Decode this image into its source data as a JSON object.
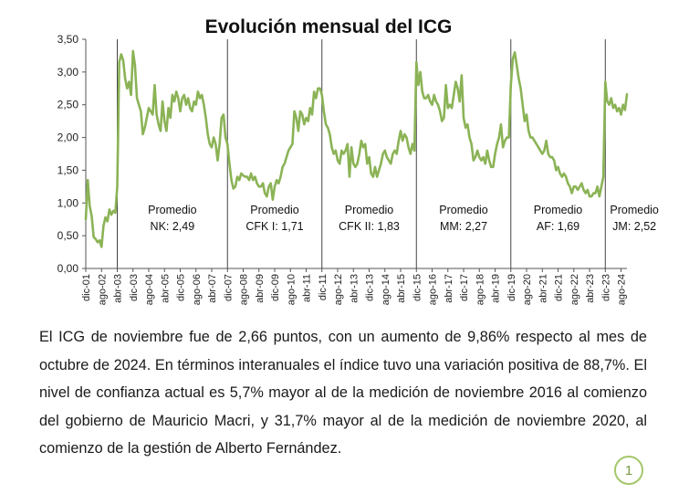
{
  "chart_data": {
    "type": "line",
    "title": "Evolución mensual del ICG",
    "xlabel": "",
    "ylabel": "",
    "ylim": [
      0,
      3.5
    ],
    "yticks": [
      "0,00",
      "0,50",
      "1,00",
      "1,50",
      "2,00",
      "2,50",
      "3,00",
      "3,50"
    ],
    "xticks": [
      "dic-01",
      "ago-02",
      "abr-03",
      "dic-03",
      "ago-04",
      "abr-05",
      "dic-05",
      "ago-06",
      "abr-07",
      "dic-07",
      "ago-08",
      "abr-09",
      "dic-09",
      "ago-10",
      "abr-11",
      "dic-11",
      "ago-12",
      "abr-13",
      "dic-13",
      "ago-14",
      "abr-15",
      "dic-15",
      "ago-16",
      "abr-17",
      "dic-17",
      "ago-18",
      "abr-19",
      "dic-19",
      "ago-20",
      "abr-21",
      "dic-21",
      "ago-22",
      "abr-23",
      "dic-23",
      "ago-24"
    ],
    "grid": false,
    "line_color": "#8bb356",
    "periods": [
      {
        "label": "Promedio",
        "value_label": "NK: 2,49"
      },
      {
        "label": "Promedio",
        "value_label": "CFK I: 1,71"
      },
      {
        "label": "Promedio",
        "value_label": "CFK II: 1,83"
      },
      {
        "label": "Promedio",
        "value_label": "MM: 2,27"
      },
      {
        "label": "Promedio",
        "value_label": "AF: 1,69"
      },
      {
        "label": "Promedio",
        "value_label": "JM: 2,52"
      }
    ],
    "series": [
      {
        "points": [
          [
            "dic-01",
            0.75
          ],
          [
            "ene-02",
            1.35
          ],
          [
            "feb-02",
            0.95
          ],
          [
            "mar-02",
            0.8
          ],
          [
            "abr-02",
            0.48
          ],
          [
            "may-02",
            0.45
          ],
          [
            "jun-02",
            0.4
          ],
          [
            "jul-02",
            0.43
          ],
          [
            "ago-02",
            0.33
          ],
          [
            "sep-02",
            0.65
          ],
          [
            "oct-02",
            0.78
          ],
          [
            "nov-02",
            0.72
          ],
          [
            "dic-02",
            0.9
          ],
          [
            "ene-03",
            0.82
          ],
          [
            "feb-03",
            0.88
          ],
          [
            "mar-03",
            0.85
          ],
          [
            "abr-03",
            1.25
          ],
          [
            "may-03",
            3.15
          ],
          [
            "jun-03",
            3.27
          ],
          [
            "jul-03",
            3.18
          ],
          [
            "ago-03",
            2.9
          ],
          [
            "sep-03",
            2.75
          ],
          [
            "oct-03",
            2.85
          ],
          [
            "nov-03",
            2.65
          ],
          [
            "dic-03",
            3.32
          ],
          [
            "ene-04",
            3.1
          ],
          [
            "feb-04",
            2.6
          ],
          [
            "mar-04",
            2.5
          ],
          [
            "abr-04",
            2.4
          ],
          [
            "may-04",
            2.05
          ],
          [
            "jun-04",
            2.15
          ],
          [
            "jul-04",
            2.3
          ],
          [
            "ago-04",
            2.45
          ],
          [
            "sep-04",
            2.4
          ],
          [
            "oct-04",
            2.35
          ],
          [
            "nov-04",
            2.8
          ],
          [
            "dic-04",
            2.35
          ],
          [
            "ene-05",
            2.2
          ],
          [
            "feb-05",
            2.1
          ],
          [
            "mar-05",
            2.55
          ],
          [
            "abr-05",
            2.25
          ],
          [
            "may-05",
            2.1
          ],
          [
            "jun-05",
            2.45
          ],
          [
            "jul-05",
            2.3
          ],
          [
            "ago-05",
            2.65
          ],
          [
            "sep-05",
            2.55
          ],
          [
            "oct-05",
            2.7
          ],
          [
            "nov-05",
            2.6
          ],
          [
            "dic-05",
            2.4
          ],
          [
            "ene-06",
            2.6
          ],
          [
            "feb-06",
            2.65
          ],
          [
            "mar-06",
            2.5
          ],
          [
            "abr-06",
            2.6
          ],
          [
            "may-06",
            2.45
          ],
          [
            "jun-06",
            2.4
          ],
          [
            "jul-06",
            2.55
          ],
          [
            "ago-06",
            2.5
          ],
          [
            "sep-06",
            2.7
          ],
          [
            "oct-06",
            2.6
          ],
          [
            "nov-06",
            2.65
          ],
          [
            "dic-06",
            2.5
          ],
          [
            "ene-07",
            2.3
          ],
          [
            "feb-07",
            2.05
          ],
          [
            "mar-07",
            1.9
          ],
          [
            "abr-07",
            1.85
          ],
          [
            "may-07",
            2.0
          ],
          [
            "jun-07",
            1.9
          ],
          [
            "jul-07",
            1.65
          ],
          [
            "ago-07",
            1.9
          ],
          [
            "sep-07",
            2.3
          ],
          [
            "oct-07",
            2.35
          ],
          [
            "nov-07",
            2.0
          ],
          [
            "dic-07",
            1.9
          ],
          [
            "ene-08",
            1.6
          ],
          [
            "feb-08",
            1.35
          ],
          [
            "mar-08",
            1.22
          ],
          [
            "abr-08",
            1.25
          ],
          [
            "may-08",
            1.4
          ],
          [
            "jun-08",
            1.35
          ],
          [
            "jul-08",
            1.45
          ],
          [
            "ago-08",
            1.42
          ],
          [
            "sep-08",
            1.4
          ],
          [
            "oct-08",
            1.4
          ],
          [
            "nov-08",
            1.35
          ],
          [
            "dic-08",
            1.45
          ],
          [
            "ene-09",
            1.35
          ],
          [
            "feb-09",
            1.4
          ],
          [
            "mar-09",
            1.3
          ],
          [
            "abr-09",
            1.25
          ],
          [
            "may-09",
            1.25
          ],
          [
            "jun-09",
            1.3
          ],
          [
            "jul-09",
            1.15
          ],
          [
            "ago-09",
            1.1
          ],
          [
            "sep-09",
            1.25
          ],
          [
            "oct-09",
            1.3
          ],
          [
            "nov-09",
            1.05
          ],
          [
            "dic-09",
            1.25
          ],
          [
            "ene-10",
            1.35
          ],
          [
            "feb-10",
            1.3
          ],
          [
            "mar-10",
            1.4
          ],
          [
            "abr-10",
            1.55
          ],
          [
            "may-10",
            1.6
          ],
          [
            "jun-10",
            1.7
          ],
          [
            "jul-10",
            1.8
          ],
          [
            "ago-10",
            1.85
          ],
          [
            "sep-10",
            1.9
          ],
          [
            "oct-10",
            2.4
          ],
          [
            "nov-10",
            2.3
          ],
          [
            "dic-10",
            2.1
          ],
          [
            "ene-11",
            2.4
          ],
          [
            "feb-11",
            2.35
          ],
          [
            "mar-11",
            2.2
          ],
          [
            "abr-11",
            2.3
          ],
          [
            "may-11",
            2.25
          ],
          [
            "jun-11",
            2.45
          ],
          [
            "jul-11",
            2.35
          ],
          [
            "ago-11",
            2.7
          ],
          [
            "sep-11",
            2.6
          ],
          [
            "oct-11",
            2.75
          ],
          [
            "nov-11",
            2.75
          ],
          [
            "dic-11",
            2.65
          ],
          [
            "ene-12",
            2.4
          ],
          [
            "feb-12",
            2.2
          ],
          [
            "mar-12",
            2.15
          ],
          [
            "abr-12",
            2.05
          ],
          [
            "may-12",
            1.85
          ],
          [
            "jun-12",
            1.75
          ],
          [
            "jul-12",
            1.8
          ],
          [
            "ago-12",
            1.65
          ],
          [
            "sep-12",
            1.6
          ],
          [
            "oct-12",
            1.8
          ],
          [
            "nov-12",
            1.75
          ],
          [
            "dic-12",
            1.8
          ],
          [
            "ene-13",
            1.9
          ],
          [
            "feb-13",
            1.4
          ],
          [
            "mar-13",
            1.85
          ],
          [
            "abr-13",
            1.6
          ],
          [
            "may-13",
            1.55
          ],
          [
            "jun-13",
            1.6
          ],
          [
            "jul-13",
            1.75
          ],
          [
            "ago-13",
            1.95
          ],
          [
            "sep-13",
            1.85
          ],
          [
            "oct-13",
            1.9
          ],
          [
            "nov-13",
            1.6
          ],
          [
            "dic-13",
            1.7
          ],
          [
            "ene-14",
            1.45
          ],
          [
            "feb-14",
            1.4
          ],
          [
            "mar-14",
            1.55
          ],
          [
            "abr-14",
            1.4
          ],
          [
            "may-14",
            1.5
          ],
          [
            "jun-14",
            1.6
          ],
          [
            "jul-14",
            1.75
          ],
          [
            "ago-14",
            1.8
          ],
          [
            "sep-14",
            1.7
          ],
          [
            "oct-14",
            1.65
          ],
          [
            "nov-14",
            1.6
          ],
          [
            "dic-14",
            1.75
          ],
          [
            "ene-15",
            1.8
          ],
          [
            "feb-15",
            1.75
          ],
          [
            "mar-15",
            1.95
          ],
          [
            "abr-15",
            2.1
          ],
          [
            "may-15",
            1.95
          ],
          [
            "jun-15",
            2.05
          ],
          [
            "jul-15",
            2.0
          ],
          [
            "ago-15",
            1.85
          ],
          [
            "sep-15",
            1.75
          ],
          [
            "oct-15",
            1.9
          ],
          [
            "nov-15",
            1.8
          ],
          [
            "dic-15",
            3.15
          ],
          [
            "ene-16",
            2.8
          ],
          [
            "feb-16",
            3.0
          ],
          [
            "mar-16",
            2.7
          ],
          [
            "abr-16",
            2.6
          ],
          [
            "may-16",
            2.6
          ],
          [
            "jun-16",
            2.65
          ],
          [
            "jul-16",
            2.55
          ],
          [
            "ago-16",
            2.5
          ],
          [
            "sep-16",
            2.65
          ],
          [
            "oct-16",
            2.55
          ],
          [
            "nov-16",
            2.5
          ],
          [
            "dic-16",
            2.4
          ],
          [
            "ene-17",
            2.25
          ],
          [
            "feb-17",
            2.3
          ],
          [
            "mar-17",
            2.8
          ],
          [
            "abr-17",
            2.45
          ],
          [
            "may-17",
            2.5
          ],
          [
            "jun-17",
            2.45
          ],
          [
            "jul-17",
            2.65
          ],
          [
            "ago-17",
            2.85
          ],
          [
            "sep-17",
            2.75
          ],
          [
            "oct-17",
            2.55
          ],
          [
            "nov-17",
            2.95
          ],
          [
            "dic-17",
            2.3
          ],
          [
            "ene-18",
            2.15
          ],
          [
            "feb-18",
            2.2
          ],
          [
            "mar-18",
            2.0
          ],
          [
            "abr-18",
            1.9
          ],
          [
            "may-18",
            1.65
          ],
          [
            "jun-18",
            1.7
          ],
          [
            "jul-18",
            1.8
          ],
          [
            "ago-18",
            1.7
          ],
          [
            "sep-18",
            1.65
          ],
          [
            "oct-18",
            1.7
          ],
          [
            "nov-18",
            1.6
          ],
          [
            "dic-18",
            1.8
          ],
          [
            "ene-19",
            1.65
          ],
          [
            "feb-19",
            1.55
          ],
          [
            "mar-19",
            1.55
          ],
          [
            "abr-19",
            1.75
          ],
          [
            "may-19",
            1.9
          ],
          [
            "jun-19",
            2.0
          ],
          [
            "jul-19",
            2.2
          ],
          [
            "ago-19",
            1.85
          ],
          [
            "sep-19",
            1.95
          ],
          [
            "oct-19",
            2.0
          ],
          [
            "nov-19",
            2.0
          ],
          [
            "dic-19",
            2.8
          ],
          [
            "ene-20",
            3.2
          ],
          [
            "feb-20",
            3.3
          ],
          [
            "mar-20",
            3.1
          ],
          [
            "abr-20",
            2.9
          ],
          [
            "may-20",
            2.75
          ],
          [
            "jun-20",
            2.5
          ],
          [
            "jul-20",
            2.25
          ],
          [
            "ago-20",
            2.35
          ],
          [
            "sep-20",
            2.1
          ],
          [
            "oct-20",
            2.0
          ],
          [
            "nov-20",
            2.0
          ],
          [
            "dic-20",
            1.95
          ],
          [
            "ene-21",
            1.9
          ],
          [
            "feb-21",
            1.85
          ],
          [
            "mar-21",
            1.8
          ],
          [
            "abr-21",
            1.75
          ],
          [
            "may-21",
            1.8
          ],
          [
            "jun-21",
            1.95
          ],
          [
            "jul-21",
            1.75
          ],
          [
            "ago-21",
            1.7
          ],
          [
            "sep-21",
            1.7
          ],
          [
            "oct-21",
            1.65
          ],
          [
            "nov-21",
            1.5
          ],
          [
            "dic-21",
            1.55
          ],
          [
            "ene-22",
            1.45
          ],
          [
            "feb-22",
            1.4
          ],
          [
            "mar-22",
            1.45
          ],
          [
            "abr-22",
            1.4
          ],
          [
            "may-22",
            1.3
          ],
          [
            "jun-22",
            1.25
          ],
          [
            "jul-22",
            1.15
          ],
          [
            "ago-22",
            1.25
          ],
          [
            "sep-22",
            1.25
          ],
          [
            "oct-22",
            1.2
          ],
          [
            "nov-22",
            1.25
          ],
          [
            "dic-22",
            1.3
          ],
          [
            "ene-23",
            1.2
          ],
          [
            "feb-23",
            1.15
          ],
          [
            "mar-23",
            1.2
          ],
          [
            "abr-23",
            1.1
          ],
          [
            "may-23",
            1.1
          ],
          [
            "jun-23",
            1.15
          ],
          [
            "jul-23",
            1.15
          ],
          [
            "ago-23",
            1.25
          ],
          [
            "sep-23",
            1.1
          ],
          [
            "oct-23",
            1.25
          ],
          [
            "nov-23",
            1.4
          ],
          [
            "dic-23",
            2.85
          ],
          [
            "ene-24",
            2.55
          ],
          [
            "feb-24",
            2.5
          ],
          [
            "mar-24",
            2.6
          ],
          [
            "abr-24",
            2.45
          ],
          [
            "may-24",
            2.5
          ],
          [
            "jun-24",
            2.4
          ],
          [
            "jul-24",
            2.45
          ],
          [
            "ago-24",
            2.35
          ],
          [
            "sep-24",
            2.5
          ],
          [
            "oct-24",
            2.42
          ],
          [
            "nov-24",
            2.66
          ]
        ]
      }
    ]
  },
  "paragraph": "El ICG de noviembre fue de 2,66 puntos, con un aumento de 9,86% respecto al mes de octubre de 2024. En términos interanuales el índice tuvo una variación positiva de 88,7%. El nivel de confianza actual es 5,7% mayor al de la medición de noviembre 2016 al comienzo del gobierno de Mauricio Macri, y 31,7% mayor al de la medición de noviembre 2020, al comienzo de la gestión de Alberto Fernández.",
  "page_number": "1"
}
